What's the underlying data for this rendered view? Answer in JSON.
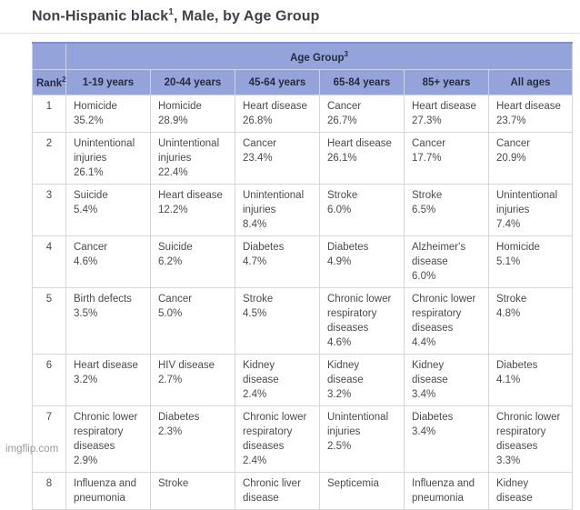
{
  "page": {
    "title": {
      "text": "Non-Hispanic black",
      "sup": "1",
      "rest": ", Male, by Age Group"
    },
    "watermark": "imgflip.com"
  },
  "colors": {
    "header_blue": "#94a3d9",
    "header_top_border": "#8191ce",
    "header_separator": "#c9d1ec",
    "body_border": "#d6d6d6",
    "body_text": "#4b4b4b",
    "header_text": "#262b40",
    "title_text": "#3f4347",
    "watermark_text": "#9a9a9a"
  },
  "table": {
    "group_header": {
      "label": "Age Group",
      "sup": "3"
    },
    "rank_header": {
      "label": "Rank",
      "sup": "2"
    },
    "columns": [
      "1-19 years",
      "20-44 years",
      "45-64 years",
      "65-84 years",
      "85+ years",
      "All ages"
    ],
    "rows": [
      {
        "rank": "1",
        "cells": [
          {
            "cause": "Homicide",
            "pct": "35.2%"
          },
          {
            "cause": "Homicide",
            "pct": "28.9%"
          },
          {
            "cause": "Heart disease",
            "pct": "26.8%"
          },
          {
            "cause": "Cancer",
            "pct": "26.7%"
          },
          {
            "cause": "Heart disease",
            "pct": "27.3%"
          },
          {
            "cause": "Heart disease",
            "pct": "23.7%"
          }
        ]
      },
      {
        "rank": "2",
        "cells": [
          {
            "cause": "Unintentional injuries",
            "pct": "26.1%"
          },
          {
            "cause": "Unintentional injuries",
            "pct": "22.4%"
          },
          {
            "cause": "Cancer",
            "pct": "23.4%"
          },
          {
            "cause": "Heart disease",
            "pct": "26.1%"
          },
          {
            "cause": "Cancer",
            "pct": "17.7%"
          },
          {
            "cause": "Cancer",
            "pct": "20.9%"
          }
        ]
      },
      {
        "rank": "3",
        "cells": [
          {
            "cause": "Suicide",
            "pct": "5.4%"
          },
          {
            "cause": "Heart disease",
            "pct": "12.2%"
          },
          {
            "cause": "Unintentional injuries",
            "pct": "8.4%"
          },
          {
            "cause": "Stroke",
            "pct": "6.0%"
          },
          {
            "cause": "Stroke",
            "pct": "6.5%"
          },
          {
            "cause": "Unintentional injuries",
            "pct": "7.4%"
          }
        ]
      },
      {
        "rank": "4",
        "cells": [
          {
            "cause": "Cancer",
            "pct": "4.6%"
          },
          {
            "cause": "Suicide",
            "pct": "6.2%"
          },
          {
            "cause": "Diabetes",
            "pct": "4.7%"
          },
          {
            "cause": "Diabetes",
            "pct": "4.9%"
          },
          {
            "cause": "Alzheimer's disease",
            "pct": "6.0%"
          },
          {
            "cause": "Homicide",
            "pct": "5.1%"
          }
        ]
      },
      {
        "rank": "5",
        "cells": [
          {
            "cause": "Birth defects",
            "pct": "3.5%"
          },
          {
            "cause": "Cancer",
            "pct": "5.0%"
          },
          {
            "cause": "Stroke",
            "pct": "4.5%"
          },
          {
            "cause": "Chronic lower respiratory diseases",
            "pct": "4.6%"
          },
          {
            "cause": "Chronic lower respiratory diseases",
            "pct": "4.4%"
          },
          {
            "cause": "Stroke",
            "pct": "4.8%"
          }
        ]
      },
      {
        "rank": "6",
        "cells": [
          {
            "cause": "Heart disease",
            "pct": "3.2%"
          },
          {
            "cause": "HIV disease",
            "pct": "2.7%"
          },
          {
            "cause": "Kidney disease",
            "pct": "2.4%"
          },
          {
            "cause": "Kidney disease",
            "pct": "3.2%"
          },
          {
            "cause": "Kidney disease",
            "pct": "3.4%"
          },
          {
            "cause": "Diabetes",
            "pct": "4.1%"
          }
        ]
      },
      {
        "rank": "7",
        "cells": [
          {
            "cause": "Chronic lower respiratory diseases",
            "pct": "2.9%"
          },
          {
            "cause": "Diabetes",
            "pct": "2.3%"
          },
          {
            "cause": "Chronic lower respiratory diseases",
            "pct": "2.4%"
          },
          {
            "cause": "Unintentional injuries",
            "pct": "2.5%"
          },
          {
            "cause": "Diabetes",
            "pct": "3.4%"
          },
          {
            "cause": "Chronic lower respiratory diseases",
            "pct": "3.3%"
          }
        ]
      },
      {
        "rank": "8",
        "cells": [
          {
            "cause": "Influenza and pneumonia",
            "pct": ""
          },
          {
            "cause": "Stroke",
            "pct": ""
          },
          {
            "cause": "Chronic liver disease",
            "pct": ""
          },
          {
            "cause": "Septicemia",
            "pct": ""
          },
          {
            "cause": "Influenza and pneumonia",
            "pct": ""
          },
          {
            "cause": "Kidney disease",
            "pct": ""
          }
        ]
      }
    ]
  }
}
